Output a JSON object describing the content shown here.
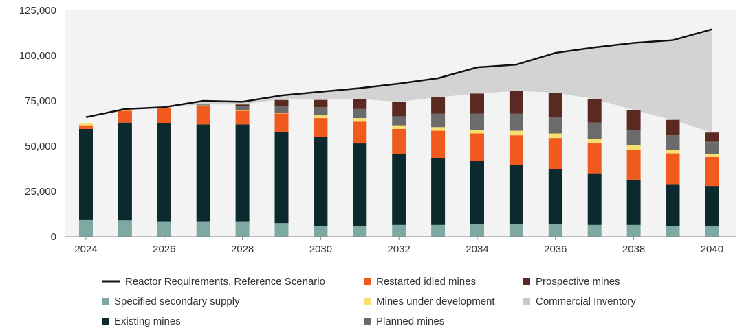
{
  "chart_data": {
    "type": "bar",
    "title": "",
    "xlabel": "",
    "ylabel": "",
    "ylim": [
      0,
      125000
    ],
    "yticks": [
      "0",
      "25,000",
      "50,000",
      "75,000",
      "100,000",
      "125,000"
    ],
    "xtick_labels": [
      "2024",
      "2026",
      "2028",
      "2030",
      "2032",
      "2034",
      "2036",
      "2038",
      "2040"
    ],
    "categories": [
      "2024",
      "2025",
      "2026",
      "2027",
      "2028",
      "2029",
      "2030",
      "2031",
      "2032",
      "2033",
      "2034",
      "2035",
      "2036",
      "2037",
      "2038",
      "2039",
      "2040"
    ],
    "stacked": true,
    "series": [
      {
        "name": "Specified secondary supply",
        "color": "#7ea8a2",
        "values": [
          9500,
          9000,
          8500,
          8500,
          8500,
          7500,
          6000,
          6000,
          6500,
          6500,
          7000,
          7000,
          7000,
          6500,
          6500,
          6000,
          6000
        ]
      },
      {
        "name": "Existing mines",
        "color": "#0c2a2e",
        "values": [
          50000,
          54000,
          54000,
          53500,
          53500,
          50500,
          49000,
          45500,
          39000,
          37000,
          35000,
          32500,
          30500,
          28500,
          25000,
          23000,
          22000
        ]
      },
      {
        "name": "Restarted idled mines",
        "color": "#f05a1c",
        "values": [
          2000,
          6500,
          8500,
          10000,
          7500,
          10000,
          10500,
          12000,
          14000,
          15000,
          15000,
          16500,
          17000,
          16500,
          16500,
          17000,
          16000
        ]
      },
      {
        "name": "Mines under development",
        "color": "#f7e06e",
        "values": [
          1000,
          500,
          500,
          500,
          500,
          500,
          1500,
          2000,
          2000,
          2000,
          2000,
          2500,
          2500,
          2500,
          2500,
          2000,
          1500
        ]
      },
      {
        "name": "Planned mines",
        "color": "#6b6b6b",
        "values": [
          0,
          0,
          0,
          500,
          2000,
          3500,
          4500,
          5000,
          5000,
          7500,
          9000,
          9500,
          9000,
          9000,
          8500,
          8000,
          7000
        ]
      },
      {
        "name": "Prospective mines",
        "color": "#5a2a22",
        "values": [
          0,
          0,
          0,
          0,
          1000,
          3500,
          4000,
          5500,
          8000,
          9000,
          11000,
          12500,
          13500,
          13000,
          11000,
          8500,
          5000
        ]
      }
    ],
    "commercial_inventory": {
      "name": "Commercial Inventory",
      "color": "#d3d3d3",
      "values": [
        66000,
        70500,
        71500,
        73000,
        73000,
        76000,
        75500,
        76000,
        74500,
        77000,
        79000,
        80500,
        79500,
        76000,
        70000,
        64500,
        57500
      ]
    },
    "reactor_requirements": {
      "name": "Reactor Requirements, Reference Scenario",
      "color": "#111111",
      "values": [
        66000,
        70500,
        71500,
        75000,
        74500,
        78000,
        80000,
        82000,
        84500,
        87500,
        93500,
        95000,
        101500,
        104500,
        107000,
        108500,
        114500
      ]
    },
    "legend": [
      {
        "label": "Reactor Requirements, Reference Scenario",
        "kind": "line",
        "color": "#111111"
      },
      {
        "label": "Specified secondary supply",
        "kind": "square",
        "color": "#7ea8a2"
      },
      {
        "label": "Existing mines",
        "kind": "square",
        "color": "#0c2a2e"
      },
      {
        "label": "Restarted idled mines",
        "kind": "square",
        "color": "#f05a1c"
      },
      {
        "label": "Mines under development",
        "kind": "square",
        "color": "#f7e06e"
      },
      {
        "label": "Planned mines",
        "kind": "square",
        "color": "#6b6b6b"
      },
      {
        "label": "Prospective mines",
        "kind": "square",
        "color": "#5a2a22"
      },
      {
        "label": "Commercial Inventory",
        "kind": "square",
        "color": "#c8c8c8"
      }
    ],
    "legend_placement": "bottom",
    "grid": false
  }
}
